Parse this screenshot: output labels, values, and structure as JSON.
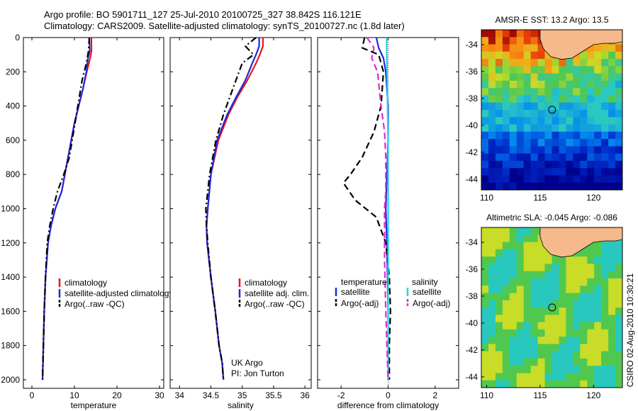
{
  "header": {
    "line1": "Argo profile: BO 5901711_127 25-Jul-2010 20100725_327 38.842S 116.121E",
    "line2": "Climatology: CARS2009. Satellite-adjusted climatology: synTS_20100727.nc (1.8d later)"
  },
  "credit": "CSIRO 02-Aug-2010 10:30:21",
  "colors": {
    "climatology": "#e8141e",
    "satellite": "#1e2adc",
    "argo": "#000000",
    "diff_satellite_salinity": "#28d2e6",
    "diff_argo_salinity": "#e628d2",
    "land": "#f5b98c"
  },
  "chart_data": [
    {
      "type": "line",
      "panel": "temperature",
      "xlabel": "temperature",
      "ylabel": "",
      "xlim": [
        -2,
        31
      ],
      "ylim": [
        2050,
        0
      ],
      "xticks": [
        "0",
        "10",
        "20",
        "30"
      ],
      "xtick_values": [
        0,
        10,
        20,
        30
      ],
      "yticks": [
        "0",
        "200",
        "400",
        "600",
        "800",
        "1000",
        "1200",
        "1400",
        "1600",
        "1800",
        "2000"
      ],
      "ytick_values": [
        0,
        200,
        400,
        600,
        800,
        1000,
        1200,
        1400,
        1600,
        1800,
        2000
      ],
      "legend": [
        "climatology",
        "satellite-adjusted climatology",
        "Argo(..raw -QC)"
      ],
      "series": [
        {
          "name": "climatology",
          "style": "solid",
          "x": [
            14.0,
            14.0,
            13.7,
            12.9,
            12.0,
            11.0,
            10.0,
            8.5,
            7.0,
            5.5,
            4.5,
            3.8,
            3.2,
            2.9,
            2.7,
            2.6,
            2.5
          ],
          "y": [
            0,
            80,
            120,
            200,
            300,
            400,
            500,
            700,
            900,
            1000,
            1100,
            1200,
            1400,
            1600,
            1800,
            1900,
            2000
          ]
        },
        {
          "name": "satellite-adjusted climatology",
          "style": "solid",
          "x": [
            13.5,
            13.6,
            13.2,
            12.8,
            12.0,
            11.0,
            10.0,
            8.5,
            7.0,
            5.5,
            4.5,
            3.8,
            3.2,
            2.9,
            2.7,
            2.6,
            2.5
          ],
          "y": [
            0,
            80,
            120,
            200,
            300,
            400,
            500,
            700,
            900,
            1000,
            1100,
            1200,
            1400,
            1600,
            1800,
            1900,
            2000
          ]
        },
        {
          "name": "Argo(..raw -QC)",
          "style": "dashdot",
          "x": [
            13.5,
            13.3,
            12.8,
            11.8,
            10.8,
            9.8,
            8.8,
            7.5,
            6.0,
            5.0,
            4.2,
            3.6,
            3.2,
            2.9,
            2.7,
            2.6,
            2.5
          ],
          "y": [
            0,
            80,
            150,
            250,
            400,
            550,
            700,
            800,
            900,
            1000,
            1100,
            1200,
            1400,
            1600,
            1800,
            1900,
            2000
          ]
        }
      ]
    },
    {
      "type": "line",
      "panel": "salinity",
      "xlabel": "salinity",
      "ylabel": "",
      "xlim": [
        33.85,
        36.1
      ],
      "ylim": [
        2050,
        0
      ],
      "xticks": [
        "34",
        "34.5",
        "35",
        "35.5",
        "36"
      ],
      "xtick_values": [
        34,
        34.5,
        35,
        35.5,
        36
      ],
      "legend": [
        "climatology",
        "satellite adj. clim.",
        "Argo(..raw -QC)"
      ],
      "annotation": [
        "UK Argo",
        "PI: Jon Turton"
      ],
      "series": [
        {
          "name": "climatology",
          "style": "solid",
          "x": [
            35.33,
            35.33,
            35.28,
            35.22,
            35.08,
            34.92,
            34.78,
            34.62,
            34.5,
            34.45,
            34.43,
            34.44,
            34.5,
            34.57,
            34.63,
            34.68,
            34.7
          ],
          "y": [
            0,
            50,
            100,
            150,
            250,
            350,
            450,
            600,
            800,
            1000,
            1100,
            1200,
            1400,
            1600,
            1800,
            1900,
            2000
          ]
        },
        {
          "name": "satellite adj. clim.",
          "style": "solid",
          "x": [
            35.27,
            35.27,
            35.22,
            35.16,
            35.05,
            34.9,
            34.76,
            34.6,
            34.5,
            34.45,
            34.43,
            34.44,
            34.5,
            34.57,
            34.63,
            34.68,
            34.7
          ],
          "y": [
            0,
            50,
            100,
            150,
            250,
            350,
            450,
            600,
            800,
            1000,
            1100,
            1200,
            1400,
            1600,
            1800,
            1900,
            2000
          ]
        },
        {
          "name": "Argo(..raw -QC)",
          "style": "dashdot",
          "x": [
            35.22,
            35.05,
            35.18,
            35.0,
            34.85,
            34.7,
            34.58,
            34.48,
            34.42,
            34.43,
            34.45,
            34.5,
            34.57,
            34.63,
            34.68,
            34.7
          ],
          "y": [
            0,
            50,
            100,
            150,
            300,
            450,
            600,
            800,
            1000,
            1100,
            1200,
            1400,
            1600,
            1800,
            1900,
            2000
          ]
        }
      ]
    },
    {
      "type": "line",
      "panel": "difference",
      "xlabel": "difference from climatology",
      "ylabel": "",
      "xlim": [
        -3,
        3
      ],
      "ylim": [
        2050,
        0
      ],
      "xticks": [
        "-2",
        "0",
        "2"
      ],
      "xtick_values": [
        -2,
        0,
        2
      ],
      "legend": [
        "temperature",
        "satellite",
        "Argo(-adj)",
        "salinity",
        "satellite",
        "Argo(-adj)"
      ],
      "series": [
        {
          "name": "temperature satellite",
          "style": "solid",
          "color_key": "satellite",
          "x": [
            -0.5,
            -0.4,
            -0.2,
            -0.1,
            -0.05,
            0.0,
            0.0,
            -0.05,
            -0.1,
            -0.05,
            0.0,
            0.0
          ],
          "y": [
            0,
            60,
            120,
            200,
            300,
            400,
            600,
            800,
            1000,
            1200,
            1600,
            2000
          ]
        },
        {
          "name": "temperature Argo(-adj)",
          "style": "dashed",
          "color_key": "argo",
          "x": [
            -1.0,
            -1.1,
            -0.4,
            -0.2,
            -0.3,
            -0.6,
            -1.1,
            -1.6,
            -1.9,
            -1.4,
            -0.5,
            -0.1,
            0.05,
            0.1,
            0.05,
            0.05
          ],
          "y": [
            0,
            60,
            100,
            200,
            400,
            550,
            700,
            800,
            850,
            950,
            1050,
            1200,
            1400,
            1600,
            1800,
            2000
          ]
        },
        {
          "name": "salinity satellite",
          "style": "solid",
          "color_key": "diff_satellite_salinity",
          "x": [
            -0.06,
            -0.06,
            -0.05,
            -0.03,
            -0.02,
            0.0,
            0.0,
            0.0,
            0.0,
            0.0
          ],
          "y": [
            0,
            80,
            150,
            300,
            450,
            600,
            900,
            1200,
            1600,
            2000
          ]
        },
        {
          "name": "salinity Argo(-adj)",
          "style": "dashed",
          "color_key": "diff_argo_salinity",
          "x": [
            -0.9,
            -0.6,
            -0.7,
            -0.45,
            -0.3,
            -0.15,
            -0.1,
            -0.1,
            -0.15,
            -0.15,
            -0.1,
            -0.05,
            0.0
          ],
          "y": [
            0,
            60,
            120,
            200,
            400,
            550,
            700,
            900,
            1000,
            1300,
            1600,
            1800,
            2000
          ]
        }
      ]
    },
    {
      "type": "heatmap",
      "panel": "sst-map",
      "title": "AMSR-E SST: 13.2 Argo: 13.5",
      "xlim": [
        109.5,
        122.7
      ],
      "ylim": [
        -44.8,
        -32.9
      ],
      "xticks": [
        "110",
        "115",
        "120"
      ],
      "xtick_values": [
        110,
        115,
        120
      ],
      "yticks": [
        "-34",
        "-36",
        "-38",
        "-40",
        "-42",
        "-44"
      ],
      "ytick_values": [
        -34,
        -36,
        -38,
        -40,
        -42,
        -44
      ],
      "marker": {
        "lon": 116.121,
        "lat": -38.842
      }
    },
    {
      "type": "heatmap",
      "panel": "sla-map",
      "title": "Altimetric SLA: -0.045 Argo: -0.086",
      "xlim": [
        109.5,
        122.7
      ],
      "ylim": [
        -44.8,
        -32.9
      ],
      "xticks": [
        "110",
        "115",
        "120"
      ],
      "xtick_values": [
        110,
        115,
        120
      ],
      "yticks": [
        "-34",
        "-36",
        "-38",
        "-40",
        "-42",
        "-44"
      ],
      "ytick_values": [
        -34,
        -36,
        -38,
        -40,
        -42,
        -44
      ],
      "marker": {
        "lon": 116.121,
        "lat": -38.842
      }
    }
  ]
}
